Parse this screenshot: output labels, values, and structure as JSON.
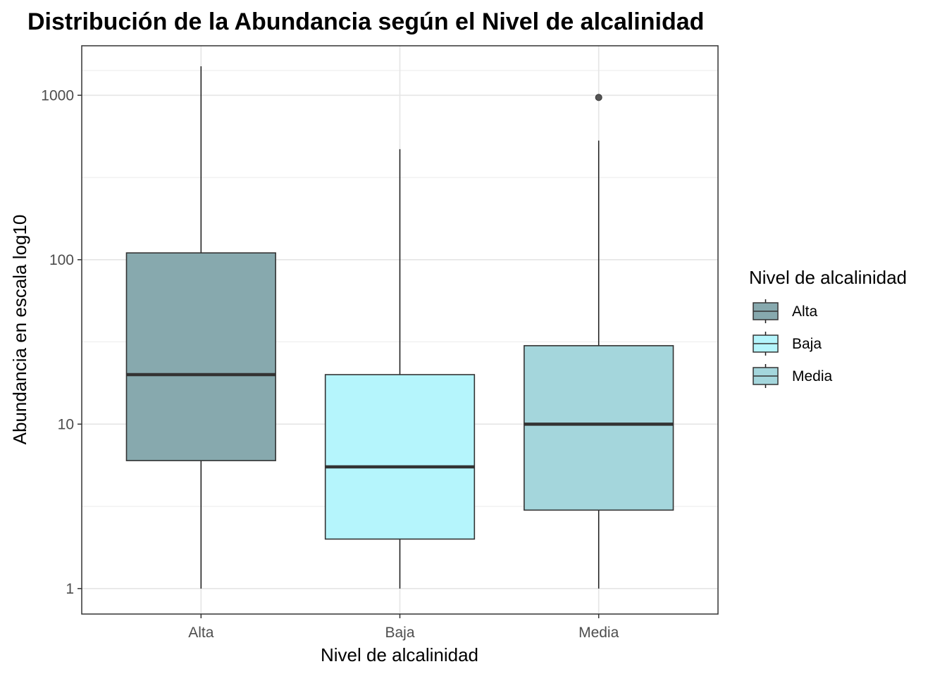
{
  "chart_data": {
    "type": "box",
    "title": "Distribución de la Abundancia según el Nivel de alcalinidad",
    "xlabel": "Nivel de alcalinidad",
    "ylabel": "Abundancia en escala log10",
    "y_scale": "log10",
    "ylim": [
      0.7,
      2000
    ],
    "y_ticks": [
      1,
      10,
      100,
      1000
    ],
    "y_tick_labels": [
      "1",
      "10",
      "100",
      "1000"
    ],
    "grid": true,
    "categories": [
      "Alta",
      "Baja",
      "Media"
    ],
    "boxes": [
      {
        "category": "Alta",
        "min": 1,
        "q1": 6,
        "median": 20,
        "q3": 110,
        "max": 1500,
        "outliers": [],
        "fill": "#87a9ae"
      },
      {
        "category": "Baja",
        "min": 1,
        "q1": 2,
        "median": 5.5,
        "q3": 20,
        "max": 470,
        "outliers": [],
        "fill": "#b5f5fc"
      },
      {
        "category": "Media",
        "min": 1,
        "q1": 3,
        "median": 10,
        "q3": 30,
        "max": 530,
        "outliers": [
          970
        ],
        "fill": "#a4d6dc"
      }
    ],
    "legend": {
      "title": "Nivel de alcalinidad",
      "placement": "right",
      "entries": [
        "Alta",
        "Baja",
        "Media"
      ]
    }
  }
}
